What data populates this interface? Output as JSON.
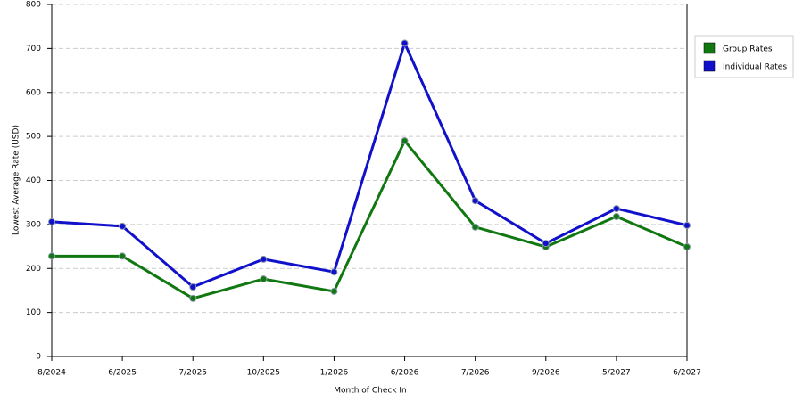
{
  "chart_data": {
    "type": "line",
    "x_label": "Month of Check In",
    "y_label": "Lowest Average Rate (USD)",
    "categories": [
      "8/2024",
      "6/2025",
      "7/2025",
      "10/2025",
      "1/2026",
      "6/2026",
      "7/2026",
      "9/2026",
      "5/2027",
      "6/2027"
    ],
    "series": [
      {
        "name": "Group Rates",
        "color": "#117711",
        "values": [
          228,
          228,
          132,
          176,
          148,
          490,
          294,
          249,
          318,
          249
        ]
      },
      {
        "name": "Individual Rates",
        "color": "#1111cc",
        "values": [
          306,
          296,
          158,
          221,
          192,
          712,
          354,
          257,
          336,
          298
        ]
      }
    ],
    "ylim": [
      0,
      800
    ],
    "yticks": [
      0,
      100,
      200,
      300,
      400,
      500,
      600,
      700,
      800
    ],
    "grid": true,
    "legend": "right"
  }
}
